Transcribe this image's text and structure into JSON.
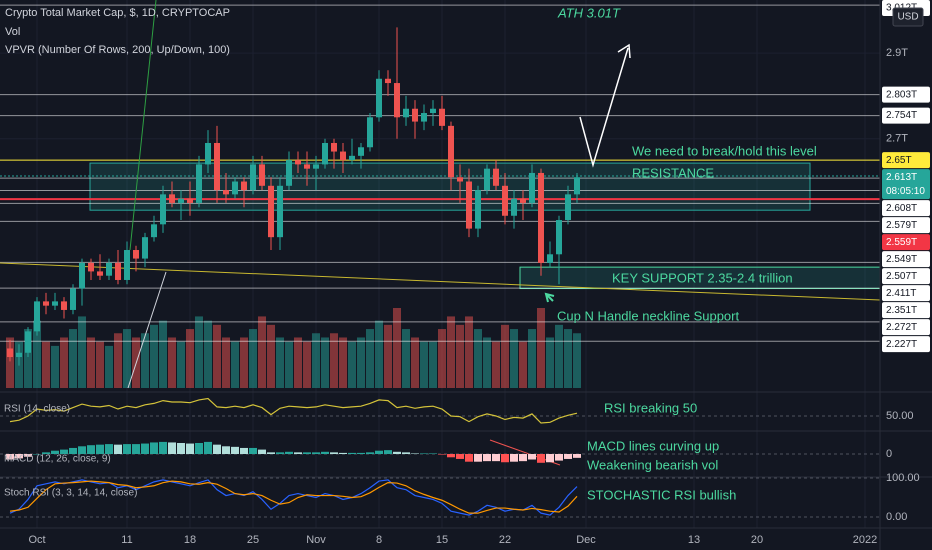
{
  "chart_data": {
    "type": "candlestick",
    "title": "Crypto Total Market Cap, $, 1D, CRYPTOCAP",
    "volume_label": "Vol",
    "vpvr_label": "VPVR (Number Of Rows, 200, Up/Down, 100)",
    "currency": "USD",
    "up_color": "#26a69a",
    "down_color": "#ef5350",
    "x": [
      "09-28",
      "09-29",
      "09-30",
      "10-01",
      "10-02",
      "10-03",
      "10-04",
      "10-05",
      "10-06",
      "10-07",
      "10-08",
      "10-09",
      "10-10",
      "10-11",
      "10-12",
      "10-13",
      "10-14",
      "10-15",
      "10-16",
      "10-17",
      "10-18",
      "10-19",
      "10-20",
      "10-21",
      "10-22",
      "10-23",
      "10-24",
      "10-25",
      "10-26",
      "10-27",
      "10-28",
      "10-29",
      "10-30",
      "10-31",
      "11-01",
      "11-02",
      "11-03",
      "11-04",
      "11-05",
      "11-06",
      "11-07",
      "11-08",
      "11-09",
      "11-10",
      "11-11",
      "11-12",
      "11-13",
      "11-14",
      "11-15",
      "11-16",
      "11-17",
      "11-18",
      "11-19",
      "11-20",
      "11-21",
      "11-22",
      "11-23",
      "11-24",
      "11-25",
      "11-26",
      "11-27",
      "11-28",
      "11-29",
      "11-30"
    ],
    "open": [
      2.21,
      2.19,
      2.2,
      2.25,
      2.32,
      2.31,
      2.32,
      2.3,
      2.35,
      2.41,
      2.39,
      2.38,
      2.41,
      2.37,
      2.44,
      2.42,
      2.47,
      2.5,
      2.57,
      2.55,
      2.56,
      2.55,
      2.64,
      2.69,
      2.58,
      2.57,
      2.6,
      2.58,
      2.64,
      2.59,
      2.47,
      2.59,
      2.65,
      2.64,
      2.63,
      2.64,
      2.69,
      2.67,
      2.65,
      2.66,
      2.68,
      2.75,
      2.84,
      2.83,
      2.75,
      2.77,
      2.74,
      2.76,
      2.77,
      2.73,
      2.61,
      2.6,
      2.49,
      2.58,
      2.63,
      2.59,
      2.52,
      2.56,
      2.55,
      2.62,
      2.41,
      2.43,
      2.51,
      2.57
    ],
    "high": [
      2.23,
      2.22,
      2.26,
      2.33,
      2.34,
      2.34,
      2.33,
      2.36,
      2.42,
      2.42,
      2.43,
      2.42,
      2.44,
      2.46,
      2.45,
      2.48,
      2.52,
      2.59,
      2.6,
      2.58,
      2.6,
      2.66,
      2.72,
      2.73,
      2.62,
      2.61,
      2.61,
      2.66,
      2.66,
      2.61,
      2.61,
      2.67,
      2.67,
      2.67,
      2.66,
      2.7,
      2.7,
      2.69,
      2.7,
      2.69,
      2.76,
      2.86,
      2.86,
      2.96,
      2.8,
      2.79,
      2.78,
      2.79,
      2.8,
      2.74,
      2.64,
      2.63,
      2.59,
      2.64,
      2.65,
      2.62,
      2.58,
      2.58,
      2.64,
      2.63,
      2.46,
      2.52,
      2.59,
      2.62
    ],
    "low": [
      2.18,
      2.17,
      2.19,
      2.24,
      2.29,
      2.3,
      2.28,
      2.29,
      2.31,
      2.37,
      2.37,
      2.37,
      2.36,
      2.36,
      2.39,
      2.4,
      2.46,
      2.48,
      2.54,
      2.51,
      2.52,
      2.54,
      2.62,
      2.55,
      2.55,
      2.56,
      2.54,
      2.57,
      2.58,
      2.44,
      2.44,
      2.58,
      2.62,
      2.59,
      2.58,
      2.63,
      2.63,
      2.62,
      2.64,
      2.63,
      2.67,
      2.74,
      2.8,
      2.7,
      2.73,
      2.7,
      2.72,
      2.73,
      2.72,
      2.58,
      2.55,
      2.47,
      2.47,
      2.57,
      2.58,
      2.5,
      2.49,
      2.51,
      2.54,
      2.38,
      2.4,
      2.36,
      2.5,
      2.55
    ],
    "close": [
      2.19,
      2.2,
      2.25,
      2.32,
      2.31,
      2.32,
      2.3,
      2.35,
      2.41,
      2.39,
      2.38,
      2.41,
      2.37,
      2.44,
      2.42,
      2.47,
      2.5,
      2.57,
      2.55,
      2.56,
      2.55,
      2.64,
      2.69,
      2.58,
      2.57,
      2.6,
      2.58,
      2.64,
      2.59,
      2.47,
      2.59,
      2.65,
      2.64,
      2.63,
      2.64,
      2.69,
      2.67,
      2.65,
      2.66,
      2.68,
      2.75,
      2.84,
      2.83,
      2.75,
      2.77,
      2.74,
      2.76,
      2.77,
      2.73,
      2.61,
      2.6,
      2.49,
      2.58,
      2.63,
      2.59,
      2.52,
      2.56,
      2.55,
      2.62,
      2.41,
      2.43,
      2.51,
      2.57,
      2.61
    ],
    "volume": [
      60,
      55,
      70,
      80,
      55,
      50,
      60,
      70,
      85,
      60,
      55,
      50,
      65,
      70,
      60,
      65,
      75,
      80,
      60,
      55,
      70,
      85,
      80,
      75,
      60,
      55,
      60,
      70,
      85,
      75,
      60,
      55,
      60,
      55,
      65,
      60,
      65,
      60,
      55,
      60,
      70,
      80,
      75,
      95,
      70,
      60,
      55,
      55,
      70,
      85,
      75,
      85,
      70,
      60,
      55,
      75,
      70,
      55,
      70,
      95,
      60,
      75,
      70,
      65
    ],
    "ylim": [
      2.113,
      3.024
    ],
    "yticks": [
      {
        "value": 2.9,
        "label": "2.9T"
      },
      {
        "value": 2.7,
        "label": "2.7T"
      }
    ],
    "levels": [
      {
        "value": 3.012,
        "label": "3.012T",
        "color": "#ffffff"
      },
      {
        "value": 2.803,
        "label": "2.803T",
        "color": "#ffffff"
      },
      {
        "value": 2.754,
        "label": "2.754T",
        "color": "#ffffff"
      },
      {
        "value": 2.65,
        "label": "2.65T",
        "color": "#ffeb3b"
      },
      {
        "value": 2.613,
        "label": "2.613T",
        "color": "#26a69a",
        "countdown": "08:05:10"
      },
      {
        "value": 2.608,
        "label": "2.608T",
        "color": "#ffffff"
      },
      {
        "value": 2.579,
        "label": "2.579T",
        "color": "#ffffff"
      },
      {
        "value": 2.559,
        "label": "2.559T",
        "color": "#f23645"
      },
      {
        "value": 2.549,
        "label": "2.549T",
        "color": "#ffffff"
      },
      {
        "value": 2.507,
        "label": "2.507T",
        "color": "#ffffff"
      },
      {
        "value": 2.411,
        "label": "2.411T",
        "color": "#ffffff"
      },
      {
        "value": 2.351,
        "label": "2.351T",
        "color": "#ffffff"
      },
      {
        "value": 2.272,
        "label": "2.272T",
        "color": "#ffffff"
      },
      {
        "value": 2.227,
        "label": "2.227T",
        "color": "#ffffff"
      }
    ],
    "zones": [
      {
        "low": 2.533,
        "high": 2.643
      },
      {
        "low": 2.35,
        "high": 2.4
      }
    ],
    "xticks": [
      {
        "value": "10-01",
        "label": "Oct"
      },
      {
        "value": "10-11",
        "label": "11"
      },
      {
        "value": "10-18",
        "label": "18"
      },
      {
        "value": "10-25",
        "label": "25"
      },
      {
        "value": "11-01",
        "label": "Nov"
      },
      {
        "value": "11-08",
        "label": "8"
      },
      {
        "value": "11-15",
        "label": "15"
      },
      {
        "value": "11-22",
        "label": "22"
      },
      {
        "value": "12-01",
        "label": "Dec"
      },
      {
        "value": "12-13",
        "label": "13"
      },
      {
        "value": "12-20",
        "label": "20"
      },
      {
        "value": "01-01",
        "label": "2022"
      }
    ],
    "annotations": [
      "ATH 3.01T",
      "We need to break/hold this level",
      "RESISTANCE",
      "KEY SUPPORT 2.35-2.4 trillion",
      "Cup N Handle neckline Support",
      "RSI breaking 50",
      "MACD lines curving up",
      "Weakening bearish vol",
      "STOCHASTIC RSI bullish"
    ],
    "indicators": [
      {
        "name": "RSI (14, close)",
        "type": "line",
        "ylim": [
          30,
          80
        ],
        "yticks": [
          {
            "value": 50,
            "label": "50.00"
          }
        ],
        "series": [
          {
            "color": "#d4c33a",
            "values": [
              42,
              44,
              50,
              60,
              58,
              59,
              57,
              62,
              67,
              64,
              63,
              65,
              60,
              64,
              62,
              66,
              68,
              72,
              70,
              70,
              69,
              73,
              75,
              63,
              62,
              64,
              62,
              66,
              62,
              52,
              61,
              64,
              63,
              62,
              63,
              66,
              64,
              62,
              63,
              64,
              68,
              73,
              72,
              62,
              64,
              61,
              63,
              64,
              60,
              50,
              49,
              42,
              49,
              53,
              50,
              45,
              48,
              47,
              53,
              40,
              41,
              47,
              51,
              54
            ]
          }
        ]
      },
      {
        "name": "MACD (12, 26, close, 9)",
        "type": "bar",
        "ylim": [
          -40,
          40
        ],
        "yticks": [
          0
        ],
        "series": [
          {
            "color": "#26a69a",
            "values": [
              -10,
              -8,
              -5,
              0,
              3,
              6,
              8,
              11,
              14,
              16,
              17,
              18,
              17,
              18,
              18,
              19,
              21,
              22,
              21,
              20,
              19,
              20,
              22,
              17,
              14,
              13,
              11,
              11,
              8,
              3,
              3,
              4,
              3,
              3,
              3,
              4,
              3,
              2,
              2,
              2,
              3,
              6,
              7,
              4,
              3,
              1,
              1,
              1,
              -1,
              -6,
              -9,
              -14,
              -14,
              -13,
              -13,
              -15,
              -14,
              -13,
              -10,
              -16,
              -15,
              -12,
              -9,
              -7
            ]
          }
        ]
      },
      {
        "name": "Stoch RSI (3, 3, 14, 14, close)",
        "type": "line",
        "ylim": [
          -28,
          105
        ],
        "yticks": [
          {
            "value": 100,
            "label": "100.00"
          },
          {
            "value": 0,
            "label": "0.00"
          }
        ],
        "series": [
          {
            "color": "#2962ff",
            "values": [
              10,
              20,
              45,
              80,
              85,
              90,
              85,
              90,
              95,
              90,
              85,
              88,
              75,
              80,
              70,
              80,
              90,
              95,
              90,
              85,
              80,
              88,
              95,
              70,
              55,
              60,
              55,
              65,
              45,
              20,
              35,
              55,
              60,
              55,
              50,
              60,
              55,
              45,
              50,
              60,
              75,
              92,
              95,
              75,
              70,
              55,
              50,
              45,
              35,
              15,
              10,
              5,
              15,
              30,
              25,
              15,
              20,
              18,
              30,
              10,
              5,
              25,
              55,
              78
            ]
          },
          {
            "color": "#ff9800",
            "values": [
              15,
              18,
              25,
              48,
              70,
              85,
              87,
              88,
              90,
              92,
              90,
              88,
              83,
              81,
              75,
              77,
              80,
              88,
              92,
              90,
              85,
              84,
              88,
              84,
              73,
              60,
              57,
              60,
              55,
              43,
              33,
              37,
              50,
              57,
              55,
              55,
              55,
              53,
              50,
              52,
              62,
              76,
              88,
              87,
              80,
              67,
              58,
              50,
              43,
              32,
              20,
              10,
              10,
              17,
              23,
              23,
              20,
              18,
              22,
              19,
              15,
              13,
              28,
              53
            ]
          }
        ]
      }
    ]
  }
}
